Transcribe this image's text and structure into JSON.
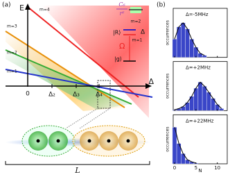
{
  "panel_a": {
    "label": "(a)",
    "e_axis": "E",
    "delta_axis": "Δ",
    "lines": [
      "m=4",
      "m=3",
      "m=2",
      "m=1"
    ],
    "ticks": [
      "0",
      "Δ₂",
      "Δ₃",
      "Δ₄"
    ],
    "length": "L",
    "levels": {
      "interaction": "C₆",
      "distance": "r⁶",
      "upper_m": "m=2",
      "rydberg": "|R⟩",
      "detuning": "Δ",
      "lower_m": "m=1",
      "rabi": "Ω",
      "ground": "|g⟩"
    }
  },
  "panel_b": {
    "label": "(b)",
    "y_label": "occurrences",
    "x_label": "N",
    "x_ticks": [
      0,
      5,
      10
    ],
    "histograms": [
      {
        "label": "Δ=-5MHz",
        "counts": [
          0.45,
          0.75,
          0.85,
          0.7,
          0.45,
          0.25,
          0.1,
          0.05
        ]
      },
      {
        "label": "Δ=+2MHz",
        "counts": [
          0.02,
          0.05,
          0.1,
          0.2,
          0.35,
          0.55,
          0.7,
          0.6,
          0.45,
          0.3,
          0.15,
          0.05
        ]
      },
      {
        "label": "Δ=+22MHz",
        "counts": [
          0.9,
          0.5,
          0.25,
          0.1,
          0.05,
          0.02
        ]
      }
    ]
  }
}
